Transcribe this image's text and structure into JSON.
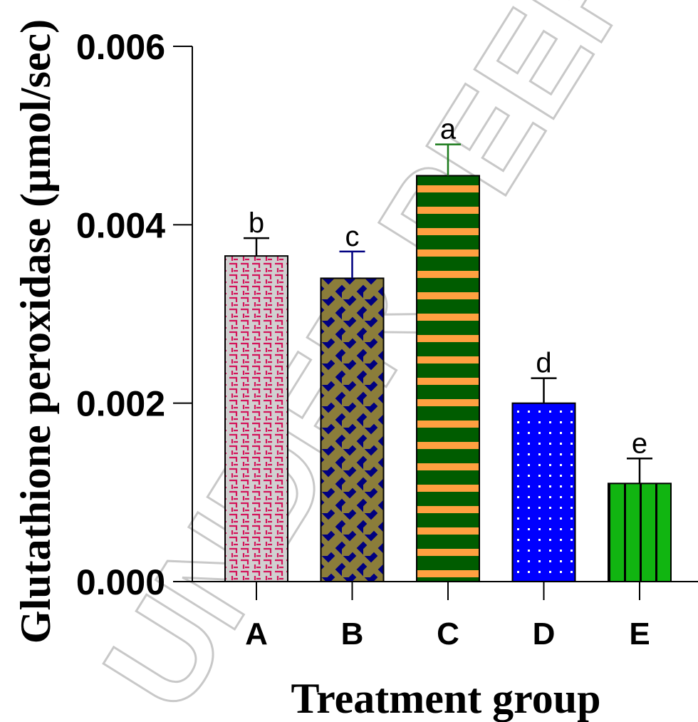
{
  "chart_data": {
    "type": "bar",
    "categories": [
      "A",
      "B",
      "C",
      "D",
      "E"
    ],
    "values": [
      0.00365,
      0.0034,
      0.00455,
      0.002,
      0.0011
    ],
    "errors": [
      0.0002,
      0.0003,
      0.00035,
      0.00028,
      0.00028
    ],
    "significance_letters": [
      "b",
      "c",
      "a",
      "d",
      "e"
    ],
    "xlabel": "Treatment group",
    "ylabel": "Glutathione peroxidase (μmol/sec)",
    "ylim": [
      0,
      0.006
    ],
    "yticks": [
      "0.000",
      "0.002",
      "0.004",
      "0.006"
    ],
    "grid": false,
    "bar_styles": [
      {
        "pattern": "maze",
        "fill": "#d0d0d0",
        "accent": "#d4145a",
        "error_color": "#000000"
      },
      {
        "pattern": "diamond-lattice",
        "fill": "#000080",
        "accent": "#8b7d3a",
        "error_color": "#000080"
      },
      {
        "pattern": "horizontal-stripes",
        "fill": "#005c00",
        "accent": "#ffa040",
        "error_color": "#1a7a1a"
      },
      {
        "pattern": "dots",
        "fill": "#0000ff",
        "accent": "#ffffff",
        "error_color": "#000000"
      },
      {
        "pattern": "vertical-stripes",
        "fill": "#11b511",
        "accent": "#000000",
        "error_color": "#000000"
      }
    ]
  },
  "watermark": {
    "text": "UNDER PEER REVIEW",
    "color": "#c8c8c8"
  }
}
